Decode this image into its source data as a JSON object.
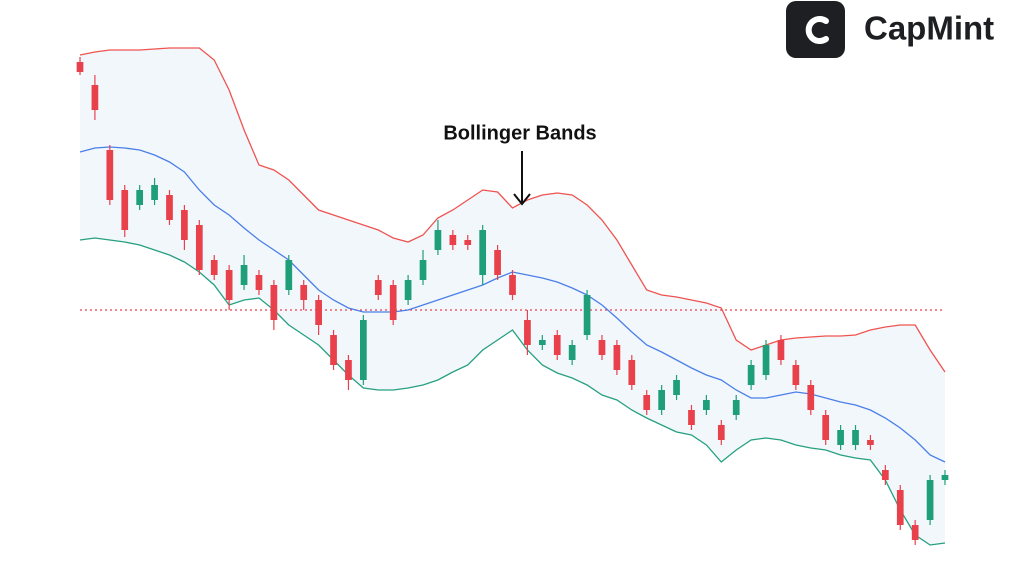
{
  "brand": {
    "name": "CapMint"
  },
  "chart_data": {
    "type": "candlestick",
    "annotation": "Bollinger Bands",
    "ylim": [
      0,
      110
    ],
    "up_color": "#1f9e7a",
    "down_color": "#e8414b",
    "band_fill": "#f2f7fc",
    "band_colors": {
      "upper": "#ef5350",
      "middle": "#4a7fe8",
      "lower": "#26a080"
    },
    "reference_line": {
      "value": 50,
      "color": "#e8414b"
    },
    "candles": {
      "open": [
        99.6,
        95,
        82,
        74,
        71,
        72,
        73,
        70,
        67,
        60,
        58,
        55,
        57,
        55,
        54,
        55,
        52,
        45,
        40,
        36,
        56,
        55,
        52,
        56,
        62,
        65,
        64,
        57,
        62,
        57,
        48,
        43,
        45,
        40,
        45,
        44,
        43,
        40,
        33,
        30,
        33,
        30,
        30,
        27,
        29,
        35,
        37,
        44,
        39,
        35,
        29,
        23,
        23,
        24,
        18,
        14,
        7,
        8,
        16
      ],
      "high": [
        100.6,
        97,
        83,
        75,
        75,
        76.4,
        74,
        71,
        68,
        61,
        59,
        61,
        58,
        56,
        61,
        56,
        53,
        46,
        41,
        49,
        57,
        56,
        57,
        62,
        68,
        66,
        65,
        67,
        63,
        58,
        50,
        45,
        46,
        44,
        54,
        45,
        44,
        41,
        34,
        35,
        37,
        31,
        33,
        28,
        33,
        40,
        44,
        45,
        40,
        36,
        30,
        27,
        27,
        25,
        19,
        15,
        8,
        17,
        18
      ],
      "low": [
        97,
        88,
        71,
        64.6,
        70,
        71,
        67,
        62,
        57,
        56,
        50,
        54,
        53,
        46,
        53,
        50,
        45,
        38,
        34,
        35,
        52,
        47,
        51,
        55,
        61,
        62,
        62,
        55,
        56,
        52,
        41,
        42,
        40,
        39,
        44,
        40,
        37,
        34,
        29,
        29,
        32,
        26,
        29,
        23,
        28,
        34,
        36,
        39,
        34,
        29,
        23,
        22,
        22,
        22,
        15,
        6,
        3,
        7,
        15
      ],
      "close": [
        97.6,
        90,
        72,
        66,
        74,
        75,
        68,
        64,
        58,
        57,
        52,
        59,
        54,
        48,
        60,
        52,
        47,
        39,
        36,
        48,
        53,
        48,
        56,
        60,
        66,
        63,
        63,
        66,
        57,
        53,
        43,
        44,
        41,
        43,
        53,
        41,
        38,
        35,
        30,
        34,
        36,
        27,
        32,
        24,
        32,
        39,
        43,
        40,
        35,
        30,
        24,
        26,
        26,
        23,
        16,
        7,
        4,
        16,
        17
      ]
    },
    "bands": {
      "upper": [
        101,
        101.6,
        102,
        102,
        102,
        102.2,
        102.4,
        102.4,
        102.4,
        100,
        94,
        86,
        79,
        78,
        76,
        73,
        70,
        69,
        68,
        67,
        66,
        64.4,
        63.6,
        65,
        68.4,
        70,
        72,
        74,
        73.6,
        70.4,
        72,
        73,
        73.4,
        73,
        71,
        68,
        64,
        59,
        54,
        53,
        52.6,
        52,
        51.4,
        50.4,
        44,
        42,
        43,
        44,
        44.4,
        44.6,
        44.8,
        44.8,
        45,
        46,
        46.6,
        47,
        47,
        42,
        37.6
      ],
      "middle": [
        81.6,
        82.4,
        82.6,
        82.4,
        82,
        81,
        79.6,
        77.6,
        74,
        71,
        69,
        66.4,
        64,
        62,
        60,
        57,
        54,
        52,
        50.4,
        49.6,
        49.6,
        49.6,
        50,
        51,
        52,
        53,
        54,
        55,
        56.4,
        57.6,
        57,
        56.4,
        55.6,
        54.4,
        53,
        51,
        48.4,
        45.6,
        43,
        41.6,
        40,
        38.4,
        37,
        36,
        34,
        32.4,
        32.4,
        33,
        33.6,
        33.2,
        32.4,
        31.6,
        31,
        30,
        28.4,
        26.4,
        24,
        21,
        19.6
      ],
      "lower": [
        64,
        64.4,
        64,
        63.6,
        63,
        62,
        61,
        59.6,
        57.6,
        55,
        51,
        52,
        52.4,
        50,
        47,
        45,
        43,
        40,
        37,
        34.4,
        34,
        34,
        34.4,
        35,
        36,
        37.6,
        39,
        42,
        44,
        46,
        42,
        39,
        37.4,
        36.4,
        35,
        33,
        32,
        30,
        28.4,
        27,
        25.6,
        25,
        23,
        19.6,
        22,
        24,
        24.4,
        24,
        23,
        22.4,
        22,
        21,
        20.4,
        20,
        16,
        10,
        5,
        3,
        3.4
      ]
    }
  }
}
